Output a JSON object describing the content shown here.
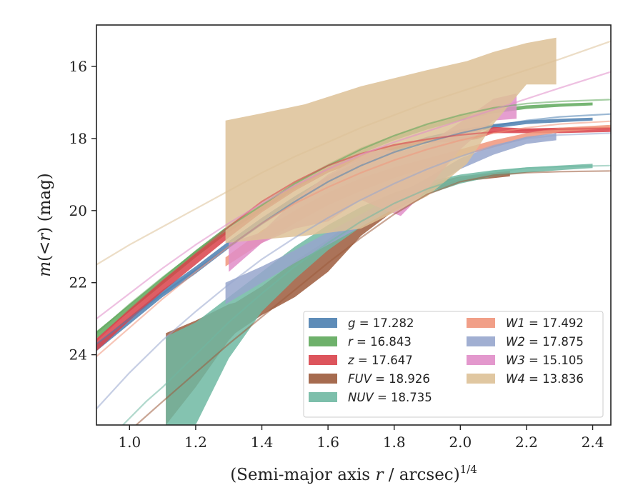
{
  "chart_data": {
    "type": "area",
    "xlabel_text": "(Semi-major axis ",
    "xlabel_var": "r",
    "xlabel_text2": " / arcsec)",
    "xlabel_sup": "1/4",
    "ylabel_var": "m",
    "ylabel_mid": "(<",
    "ylabel_var2": "r",
    "ylabel_text": ") (mag)",
    "xlim": [
      0.9,
      2.455
    ],
    "ylim": [
      25.95,
      14.85
    ],
    "x_ticks": [
      1.0,
      1.2,
      1.4,
      1.6,
      1.8,
      2.0,
      2.2,
      2.4
    ],
    "x_tick_labels": [
      "1.0",
      "1.2",
      "1.4",
      "1.6",
      "1.8",
      "2.0",
      "2.2",
      "2.4"
    ],
    "y_ticks": [
      16,
      18,
      20,
      22,
      24
    ],
    "y_tick_labels": [
      "16",
      "18",
      "20",
      "22",
      "24"
    ],
    "legend_position": "lower-right",
    "series": [
      {
        "name": "g",
        "legend_value": "17.282",
        "color": "#4c7fb0",
        "band_x": [
          0.9,
          1.0,
          1.1,
          1.2,
          1.3,
          1.4,
          1.5,
          1.6,
          1.7,
          1.8,
          1.9,
          2.0,
          2.1,
          2.2,
          2.3,
          2.4
        ],
        "band_lower": [
          23.7,
          22.95,
          22.2,
          21.55,
          20.85,
          20.2,
          19.6,
          19.05,
          18.6,
          18.25,
          17.95,
          17.75,
          17.6,
          17.5,
          17.45,
          17.42
        ],
        "band_upper": [
          23.9,
          23.15,
          22.4,
          21.75,
          21.05,
          20.4,
          19.8,
          19.2,
          18.75,
          18.38,
          18.08,
          17.88,
          17.72,
          17.6,
          17.55,
          17.5
        ],
        "fit_x": [
          0.9,
          1.0,
          1.1,
          1.2,
          1.3,
          1.4,
          1.5,
          1.6,
          1.7,
          1.8,
          1.9,
          2.0,
          2.1,
          2.2,
          2.3,
          2.455
        ],
        "fit_y": [
          23.7,
          23.0,
          22.3,
          21.65,
          21.0,
          20.35,
          19.75,
          19.2,
          18.75,
          18.38,
          18.1,
          17.85,
          17.65,
          17.5,
          17.4,
          17.32
        ]
      },
      {
        "name": "r",
        "legend_value": "16.843",
        "color": "#5ea85b",
        "band_x": [
          0.9,
          1.0,
          1.1,
          1.2,
          1.3,
          1.4,
          1.5,
          1.6,
          1.7,
          1.8,
          1.9,
          2.0,
          2.1,
          2.2,
          2.3,
          2.4
        ],
        "band_lower": [
          23.35,
          22.6,
          21.85,
          21.1,
          20.4,
          19.8,
          19.2,
          18.7,
          18.25,
          17.9,
          17.6,
          17.35,
          17.18,
          17.08,
          17.03,
          17.0
        ],
        "band_upper": [
          23.55,
          22.8,
          22.05,
          21.3,
          20.6,
          20.0,
          19.4,
          18.88,
          18.42,
          18.05,
          17.75,
          17.5,
          17.3,
          17.18,
          17.12,
          17.08
        ],
        "fit_x": [
          0.9,
          1.0,
          1.1,
          1.2,
          1.3,
          1.4,
          1.5,
          1.6,
          1.7,
          1.8,
          1.9,
          2.0,
          2.1,
          2.2,
          2.3,
          2.455
        ],
        "fit_y": [
          23.4,
          22.6,
          21.85,
          21.15,
          20.45,
          19.85,
          19.25,
          18.75,
          18.3,
          17.92,
          17.6,
          17.35,
          17.15,
          17.03,
          16.97,
          16.92
        ]
      },
      {
        "name": "z",
        "legend_value": "17.647",
        "color": "#d9424a",
        "band_x": [
          0.9,
          1.0,
          1.1,
          1.2,
          1.3,
          1.4,
          1.5,
          1.6,
          1.7,
          1.8,
          1.9,
          2.0,
          2.05,
          2.1,
          2.2,
          2.3,
          2.455
        ],
        "band_lower": [
          23.55,
          22.75,
          21.95,
          21.2,
          20.5,
          19.85,
          19.3,
          18.8,
          18.45,
          18.15,
          18.0,
          17.95,
          17.9,
          17.68,
          17.72,
          17.7,
          17.68
        ],
        "band_upper": [
          23.9,
          23.05,
          22.25,
          21.5,
          20.75,
          20.05,
          19.45,
          18.95,
          18.6,
          18.3,
          18.12,
          18.08,
          18.02,
          17.85,
          17.85,
          17.85,
          17.82
        ],
        "fit_x": [
          0.9,
          1.0,
          1.1,
          1.2,
          1.3,
          1.4,
          1.5,
          1.6,
          1.7,
          1.8,
          1.9,
          2.0,
          2.1,
          2.2,
          2.3,
          2.455
        ],
        "fit_y": [
          23.6,
          22.75,
          21.95,
          21.2,
          20.45,
          19.75,
          19.2,
          18.75,
          18.42,
          18.18,
          18.02,
          17.9,
          17.82,
          17.77,
          17.74,
          17.72
        ]
      },
      {
        "name": "FUV",
        "legend_value": "18.926",
        "color": "#9c5b3c",
        "band_x": [
          1.11,
          1.2,
          1.3,
          1.32,
          1.4,
          1.5,
          1.6,
          1.7,
          1.8,
          1.9,
          2.0,
          2.1,
          2.15
        ],
        "band_lower": [
          23.4,
          23.05,
          22.6,
          22.55,
          22.1,
          21.4,
          20.8,
          20.1,
          19.6,
          19.25,
          19.05,
          18.95,
          18.9
        ],
        "band_upper": [
          25.95,
          24.9,
          23.6,
          23.4,
          22.9,
          22.4,
          21.7,
          20.7,
          20.0,
          19.5,
          19.2,
          19.1,
          19.05
        ],
        "fit_x": [
          1.02,
          1.1,
          1.2,
          1.3,
          1.4,
          1.5,
          1.6,
          1.7,
          1.8,
          1.9,
          2.0,
          2.1,
          2.2,
          2.3,
          2.455
        ],
        "fit_y": [
          25.95,
          25.3,
          24.5,
          23.7,
          22.95,
          22.2,
          21.45,
          20.75,
          20.1,
          19.55,
          19.2,
          19.02,
          18.95,
          18.92,
          18.9
        ]
      },
      {
        "name": "NUV",
        "legend_value": "18.735",
        "color": "#6fb8a2",
        "band_x": [
          1.11,
          1.2,
          1.3,
          1.4,
          1.5,
          1.6,
          1.7,
          1.8,
          1.9,
          2.0,
          2.1,
          2.2,
          2.3,
          2.4
        ],
        "band_lower": [
          23.5,
          23.1,
          22.4,
          21.7,
          21.0,
          20.4,
          19.9,
          19.5,
          19.2,
          19.0,
          18.88,
          18.8,
          18.75,
          18.7
        ],
        "band_upper": [
          25.95,
          25.95,
          24.1,
          22.8,
          21.9,
          21.1,
          20.45,
          19.95,
          19.55,
          19.25,
          19.05,
          18.95,
          18.88,
          18.82
        ],
        "fit_x": [
          0.98,
          1.05,
          1.1,
          1.2,
          1.3,
          1.4,
          1.5,
          1.6,
          1.7,
          1.8,
          1.9,
          2.0,
          2.1,
          2.2,
          2.3,
          2.455
        ],
        "fit_y": [
          25.95,
          25.3,
          24.9,
          24.0,
          23.1,
          22.3,
          21.55,
          20.9,
          20.3,
          19.8,
          19.4,
          19.1,
          18.92,
          18.82,
          18.78,
          18.75
        ]
      },
      {
        "name": "W1",
        "legend_value": "17.492",
        "color": "#f0957b",
        "band_x": [
          1.29,
          1.4,
          1.5,
          1.6,
          1.7,
          1.8,
          1.9,
          2.0,
          2.1,
          2.2,
          2.3,
          2.455
        ],
        "band_lower": [
          21.3,
          20.55,
          20.0,
          19.5,
          19.1,
          18.8,
          18.55,
          18.3,
          18.05,
          17.85,
          17.7,
          17.62
        ],
        "band_upper": [
          21.55,
          20.9,
          20.35,
          19.85,
          19.45,
          19.1,
          18.8,
          18.5,
          18.25,
          18.0,
          17.82,
          17.72
        ],
        "fit_x": [
          0.9,
          1.0,
          1.1,
          1.2,
          1.3,
          1.4,
          1.5,
          1.6,
          1.7,
          1.8,
          1.9,
          2.0,
          2.1,
          2.2,
          2.3,
          2.455
        ],
        "fit_y": [
          24.05,
          23.25,
          22.45,
          21.7,
          21.0,
          20.35,
          19.8,
          19.35,
          18.95,
          18.6,
          18.3,
          18.05,
          17.85,
          17.7,
          17.6,
          17.52
        ]
      },
      {
        "name": "W2",
        "legend_value": "17.875",
        "color": "#97a6cd",
        "band_x": [
          1.29,
          1.4,
          1.5,
          1.6,
          1.7,
          1.8,
          1.9,
          2.0,
          2.1,
          2.2,
          2.29
        ],
        "band_lower": [
          22.0,
          21.55,
          21.1,
          20.6,
          20.1,
          19.6,
          19.1,
          18.55,
          18.2,
          17.95,
          17.85
        ],
        "band_upper": [
          22.6,
          22.0,
          21.45,
          20.95,
          20.45,
          19.95,
          19.4,
          18.85,
          18.45,
          18.15,
          18.05
        ],
        "fit_x": [
          0.9,
          1.0,
          1.1,
          1.2,
          1.3,
          1.4,
          1.5,
          1.6,
          1.7,
          1.8,
          1.9,
          2.0,
          2.1,
          2.2,
          2.3,
          2.455
        ],
        "fit_y": [
          25.5,
          24.5,
          23.6,
          22.8,
          22.05,
          21.35,
          20.75,
          20.2,
          19.7,
          19.25,
          18.85,
          18.5,
          18.2,
          18.0,
          17.9,
          17.85
        ]
      },
      {
        "name": "W3",
        "legend_value": "15.105",
        "color": "#e08dc8",
        "band_x": [
          1.3,
          1.4,
          1.5,
          1.6,
          1.7,
          1.75,
          1.82,
          1.9,
          2.0,
          2.1,
          2.17
        ],
        "band_lower": [
          20.9,
          20.6,
          19.7,
          19.0,
          18.5,
          18.3,
          18.35,
          18.15,
          17.55,
          16.9,
          16.75
        ],
        "band_upper": [
          21.7,
          20.9,
          20.5,
          20.3,
          19.7,
          19.9,
          20.15,
          19.4,
          18.3,
          17.5,
          17.45
        ],
        "fit_x": [
          0.9,
          1.0,
          1.1,
          1.2,
          1.3,
          1.4,
          1.5,
          1.6,
          1.7,
          1.8,
          1.9,
          2.0,
          2.1,
          2.2,
          2.3,
          2.455
        ],
        "fit_y": [
          23.0,
          22.3,
          21.6,
          20.95,
          20.35,
          19.8,
          19.3,
          18.85,
          18.45,
          18.1,
          17.8,
          17.5,
          17.2,
          16.9,
          16.6,
          16.15
        ]
      },
      {
        "name": "W4",
        "legend_value": "13.836",
        "color": "#ddc197",
        "band_x": [
          1.29,
          1.4,
          1.53,
          1.7,
          1.9,
          2.02,
          2.1,
          2.2,
          2.29
        ],
        "band_lower": [
          17.5,
          17.3,
          17.05,
          16.55,
          16.1,
          15.85,
          15.6,
          15.35,
          15.2
        ],
        "band_upper": [
          20.9,
          20.8,
          20.7,
          20.5,
          19.6,
          18.7,
          17.6,
          16.5,
          16.5
        ],
        "fit_x": [
          0.9,
          1.0,
          1.1,
          1.2,
          1.3,
          1.4,
          1.5,
          1.6,
          1.7,
          1.8,
          1.9,
          2.0,
          2.1,
          2.2,
          2.3,
          2.455
        ],
        "fit_y": [
          21.5,
          20.95,
          20.45,
          19.95,
          19.45,
          18.95,
          18.5,
          18.1,
          17.7,
          17.35,
          17.0,
          16.7,
          16.4,
          16.1,
          15.8,
          15.3
        ]
      }
    ]
  }
}
